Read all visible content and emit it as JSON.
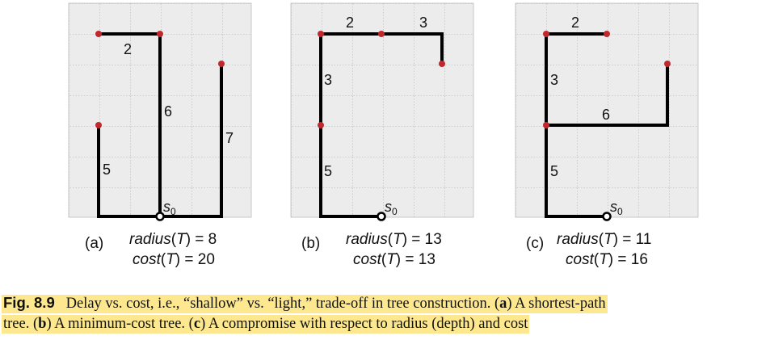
{
  "panels": [
    {
      "id": "a",
      "label": "(a)",
      "radius_label": "radius",
      "radius_value": "8",
      "cost_label": "cost",
      "cost_value": "20",
      "edge_labels": [
        "2",
        "6",
        "7",
        "5"
      ],
      "source_label": "s",
      "source_sub": "0"
    },
    {
      "id": "b",
      "label": "(b)",
      "radius_label": "radius",
      "radius_value": "13",
      "cost_label": "cost",
      "cost_value": "13",
      "edge_labels": [
        "2",
        "3",
        "3",
        "5"
      ],
      "source_label": "s",
      "source_sub": "0"
    },
    {
      "id": "c",
      "label": "(c)",
      "radius_label": "radius",
      "radius_value": "11",
      "cost_label": "cost",
      "cost_value": "16",
      "edge_labels": [
        "2",
        "3",
        "6",
        "5"
      ],
      "source_label": "s",
      "source_sub": "0"
    }
  ],
  "caption": {
    "fig_number": "Fig. 8.9",
    "part1": "Delay vs. cost, i.e., “shallow” vs. “light,” trade-off in tree construction. (",
    "a_letter": "a",
    "part2": ") A shortest-path",
    "line2_part1": "tree. (",
    "b_letter": "b",
    "part3": ") A minimum-cost tree. (",
    "c_letter": "c",
    "part4": ") A compromise with respect to radius (depth) and cost"
  },
  "colors": {
    "panel_bg": "#ececec",
    "grid": "#9a9a9a",
    "edge": "#000000",
    "node": "#c0282d",
    "highlight": "#fde88f"
  }
}
